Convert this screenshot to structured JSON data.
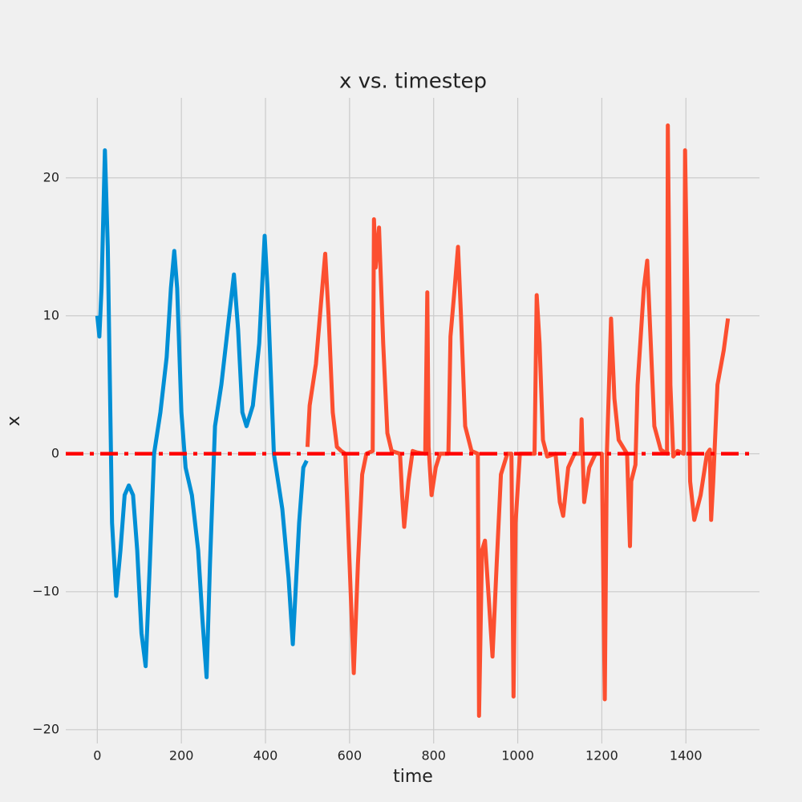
{
  "chart_data": {
    "type": "line",
    "title": "x vs. timestep",
    "x_label": "time",
    "y_label": "x",
    "xlim": [
      -75,
      1575
    ],
    "ylim": [
      -21.0,
      25.8
    ],
    "xticks": [
      0,
      200,
      400,
      600,
      800,
      1000,
      1200,
      1400
    ],
    "yticks": [
      {
        "value": -20,
        "label": "−20"
      },
      {
        "value": -10,
        "label": "−10"
      },
      0,
      10,
      20
    ],
    "grid": true,
    "series": [
      {
        "color": "#008fd5",
        "x": [
          0,
          5,
          10,
          18,
          25,
          35,
          45,
          55,
          65,
          75,
          85,
          95,
          105,
          115,
          125,
          135,
          150,
          165,
          175,
          183,
          190,
          200,
          210,
          225,
          240,
          250,
          260,
          268,
          280,
          295,
          310,
          325,
          335,
          345,
          355,
          370,
          385,
          398,
          405,
          420,
          440,
          455,
          465,
          480,
          490,
          498
        ],
        "values": [
          10,
          8.5,
          12,
          22,
          15,
          -5,
          -10.3,
          -7,
          -3,
          -2.3,
          -3,
          -7,
          -13,
          -15.4,
          -8,
          0,
          3,
          7,
          12,
          14.7,
          12,
          3,
          -1,
          -3,
          -7,
          -12,
          -16.2,
          -8,
          2,
          5,
          9,
          13,
          9,
          3,
          2,
          3.5,
          8,
          15.8,
          12,
          0,
          -4,
          -9,
          -13.8,
          -5,
          -1,
          -0.5
        ]
      },
      {
        "color": "#fc4f30",
        "x": [
          500,
          505,
          520,
          535,
          542,
          550,
          560,
          570,
          580,
          590,
          600,
          610,
          620,
          630,
          640,
          655,
          658,
          662,
          670,
          680,
          690,
          700,
          720,
          725,
          730,
          740,
          750,
          760,
          780,
          785,
          788,
          795,
          805,
          815,
          835,
          840,
          850,
          858,
          865,
          875,
          890,
          905,
          908,
          915,
          922,
          930,
          940,
          950,
          960,
          975,
          985,
          990,
          995,
          1005,
          1040,
          1045,
          1052,
          1060,
          1070,
          1090,
          1100,
          1108,
          1120,
          1135,
          1150,
          1152,
          1158,
          1170,
          1185,
          1200,
          1207,
          1212,
          1222,
          1230,
          1240,
          1260,
          1267,
          1270,
          1280,
          1285,
          1300,
          1308,
          1315,
          1325,
          1340,
          1355,
          1357,
          1363,
          1370,
          1380,
          1395,
          1398,
          1405,
          1410,
          1420,
          1435,
          1450,
          1457,
          1460,
          1465,
          1475,
          1490,
          1500
        ],
        "values": [
          0.5,
          3.5,
          6.5,
          12,
          14.5,
          10,
          3,
          0.5,
          0.2,
          0,
          -8,
          -15.9,
          -8,
          -1.5,
          0,
          0.2,
          17,
          13.5,
          16.4,
          8,
          1.5,
          0.2,
          0,
          -3,
          -5.3,
          -2,
          0.2,
          0.1,
          0,
          11.7,
          0.5,
          -3,
          -1,
          0,
          0,
          8.5,
          12,
          15,
          10,
          2,
          0.2,
          0,
          -19,
          -7,
          -6.3,
          -10,
          -14.7,
          -8,
          -1.5,
          0,
          0,
          -17.6,
          -5,
          0,
          0,
          11.5,
          8,
          1,
          -0.2,
          0,
          -3.5,
          -4.5,
          -1,
          0,
          0,
          2.5,
          -3.5,
          -1,
          0,
          0,
          -17.8,
          0,
          9.8,
          4,
          1,
          0,
          -6.7,
          -2,
          -0.8,
          5,
          12,
          14,
          9,
          2,
          0.3,
          0,
          23.8,
          5,
          -0.2,
          0.2,
          0,
          22,
          8,
          -2,
          -4.8,
          -3,
          0,
          0.3,
          -4.8,
          -2,
          5,
          7.5,
          9.8
        ]
      }
    ],
    "hlines": [
      {
        "value": 0,
        "color": "#ff0000"
      }
    ]
  }
}
